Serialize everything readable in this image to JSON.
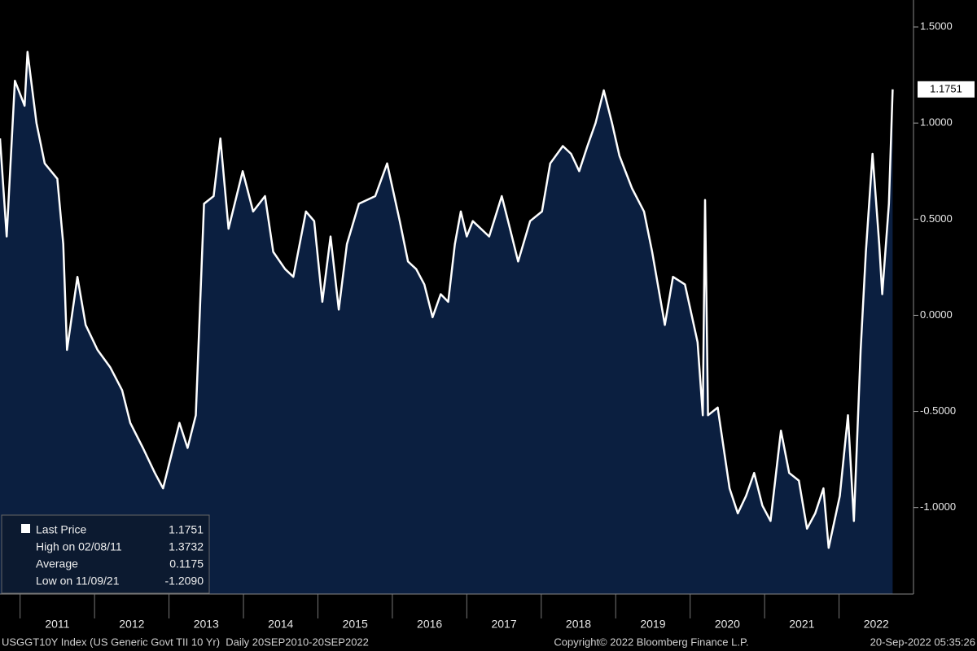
{
  "chart_data": {
    "type": "area",
    "x": [
      2010.73,
      2010.82,
      2010.93,
      2011.06,
      2011.1,
      2011.22,
      2011.33,
      2011.5,
      2011.58,
      2011.63,
      2011.77,
      2011.88,
      2012.04,
      2012.21,
      2012.37,
      2012.48,
      2012.65,
      2012.81,
      2012.92,
      2013.03,
      2013.14,
      2013.25,
      2013.36,
      2013.47,
      2013.6,
      2013.69,
      2013.8,
      2013.99,
      2014.13,
      2014.29,
      2014.4,
      2014.56,
      2014.67,
      2014.84,
      2014.95,
      2015.06,
      2015.17,
      2015.28,
      2015.39,
      2015.55,
      2015.77,
      2015.93,
      2016.1,
      2016.21,
      2016.32,
      2016.43,
      2016.54,
      2016.65,
      2016.75,
      2016.84,
      2016.92,
      2017.0,
      2017.08,
      2017.3,
      2017.47,
      2017.58,
      2017.69,
      2017.85,
      2018.01,
      2018.12,
      2018.29,
      2018.4,
      2018.51,
      2018.62,
      2018.73,
      2018.84,
      2018.95,
      2019.05,
      2019.22,
      2019.38,
      2019.49,
      2019.66,
      2019.77,
      2019.93,
      2020.1,
      2020.17,
      2020.2,
      2020.24,
      2020.37,
      2020.53,
      2020.64,
      2020.75,
      2020.86,
      2020.97,
      2021.08,
      2021.22,
      2021.33,
      2021.46,
      2021.57,
      2021.68,
      2021.79,
      2021.86,
      2022.01,
      2022.12,
      2022.2,
      2022.29,
      2022.36,
      2022.45,
      2022.54,
      2022.58,
      2022.67,
      2022.72
    ],
    "series": [
      {
        "name": "Last Price",
        "color": "#ffffff",
        "fill": "#0b1f40",
        "values": [
          0.92,
          0.41,
          1.22,
          1.09,
          1.37,
          1.0,
          0.79,
          0.71,
          0.37,
          -0.18,
          0.2,
          -0.05,
          -0.18,
          -0.27,
          -0.39,
          -0.56,
          -0.69,
          -0.82,
          -0.9,
          -0.73,
          -0.56,
          -0.69,
          -0.52,
          0.58,
          0.62,
          0.92,
          0.45,
          0.75,
          0.54,
          0.62,
          0.33,
          0.24,
          0.2,
          0.54,
          0.49,
          0.07,
          0.41,
          0.03,
          0.37,
          0.58,
          0.62,
          0.79,
          0.49,
          0.28,
          0.24,
          0.16,
          -0.01,
          0.11,
          0.07,
          0.37,
          0.54,
          0.41,
          0.49,
          0.41,
          0.62,
          0.45,
          0.28,
          0.49,
          0.54,
          0.79,
          0.88,
          0.84,
          0.75,
          0.88,
          1.0,
          1.17,
          1.0,
          0.83,
          0.66,
          0.54,
          0.33,
          -0.05,
          0.2,
          0.16,
          -0.14,
          -0.52,
          0.6,
          -0.52,
          -0.48,
          -0.9,
          -1.03,
          -0.94,
          -0.82,
          -0.99,
          -1.07,
          -0.6,
          -0.82,
          -0.86,
          -1.11,
          -1.03,
          -0.9,
          -1.21,
          -0.94,
          -0.52,
          -1.07,
          -0.18,
          0.33,
          0.84,
          0.37,
          0.11,
          0.58,
          1.1751
        ]
      }
    ],
    "last_label": "1.1751",
    "xlim": [
      2010.73,
      2023.0
    ],
    "xticks": [
      2011,
      2012,
      2013,
      2014,
      2015,
      2016,
      2017,
      2018,
      2019,
      2020,
      2021,
      2022
    ],
    "ylim": [
      -1.45,
      1.64
    ],
    "yticks": [
      {
        "value": 1.5,
        "label": "1.5000"
      },
      {
        "value": 1.0,
        "label": "1.0000"
      },
      {
        "value": 0.5,
        "label": "0.5000"
      },
      {
        "value": 0.0,
        "label": "0.0000"
      },
      {
        "value": -0.5,
        "label": "-0.5000"
      },
      {
        "value": -1.0,
        "label": "-1.0000"
      }
    ],
    "legend": [
      {
        "label": "Last Price",
        "value": "1.1751"
      },
      {
        "label": "High on 02/08/11",
        "value": "1.3732"
      },
      {
        "label": "Average",
        "value": "0.1175"
      },
      {
        "label": "Low on 11/09/21",
        "value": "-1.2090"
      }
    ],
    "footer": {
      "left": "USGGT10Y Index (US Generic Govt TII 10 Yr)  Daily 20SEP2010-20SEP2022",
      "center": "Copyright© 2022 Bloomberg Finance L.P.",
      "right": "20-Sep-2022 05:35:26"
    }
  }
}
